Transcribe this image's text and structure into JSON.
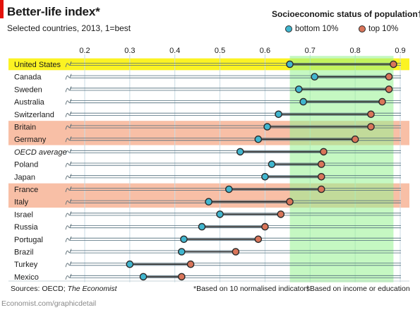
{
  "header": {
    "title": "Better-life index*",
    "subtitle": "Selected countries, 2013, 1=best"
  },
  "legend": {
    "title": "Socioeconomic status of population†:",
    "bottom_label": "bottom 10%",
    "top_label": "top 10%"
  },
  "footer": {
    "source_prefix": "Sources: OECD; ",
    "source_italic": "The Economist",
    "note_indicators": "*Based on 10 normalised indicators",
    "note_income": "†Based on income or education",
    "credit": "Economist.com/graphicdetail"
  },
  "colors": {
    "bottom": "#41b6cf",
    "top": "#d9755a",
    "highlight_us": "#fbf323",
    "highlight_band": "#f8bfa6",
    "green_band": "#95f28f",
    "rule": "#2a2a2a"
  },
  "chart_data": {
    "type": "scatter",
    "title": "Better-life index*",
    "subtitle": "Selected countries, 2013, 1=best",
    "xlim": [
      0.2,
      0.9
    ],
    "xticks": [
      "0.2",
      "0.3",
      "0.4",
      "0.5",
      "0.6",
      "0.7",
      "0.8",
      "0.9"
    ],
    "green_band": [
      0.655,
      0.885
    ],
    "categories": [
      "United States",
      "Canada",
      "Sweden",
      "Australia",
      "Switzerland",
      "Britain",
      "Germany",
      "OECD average",
      "Poland",
      "Japan",
      "France",
      "Italy",
      "Israel",
      "Russia",
      "Portugal",
      "Brazil",
      "Turkey",
      "Mexico"
    ],
    "italic_categories": [
      "OECD average"
    ],
    "highlights": [
      {
        "rows": [
          "United States"
        ],
        "style": "yellow"
      },
      {
        "rows": [
          "Britain",
          "Germany"
        ],
        "style": "orange"
      },
      {
        "rows": [
          "France",
          "Italy"
        ],
        "style": "orange"
      }
    ],
    "series": [
      {
        "name": "bottom 10%",
        "values": [
          0.655,
          0.71,
          0.675,
          0.685,
          0.63,
          0.605,
          0.585,
          0.545,
          0.615,
          0.6,
          0.52,
          0.475,
          0.5,
          0.46,
          0.42,
          0.415,
          0.3,
          0.33
        ]
      },
      {
        "name": "top 10%",
        "values": [
          0.885,
          0.875,
          0.875,
          0.86,
          0.835,
          0.835,
          0.8,
          0.73,
          0.725,
          0.725,
          0.725,
          0.655,
          0.635,
          0.6,
          0.585,
          0.535,
          0.435,
          0.415
        ]
      }
    ]
  }
}
